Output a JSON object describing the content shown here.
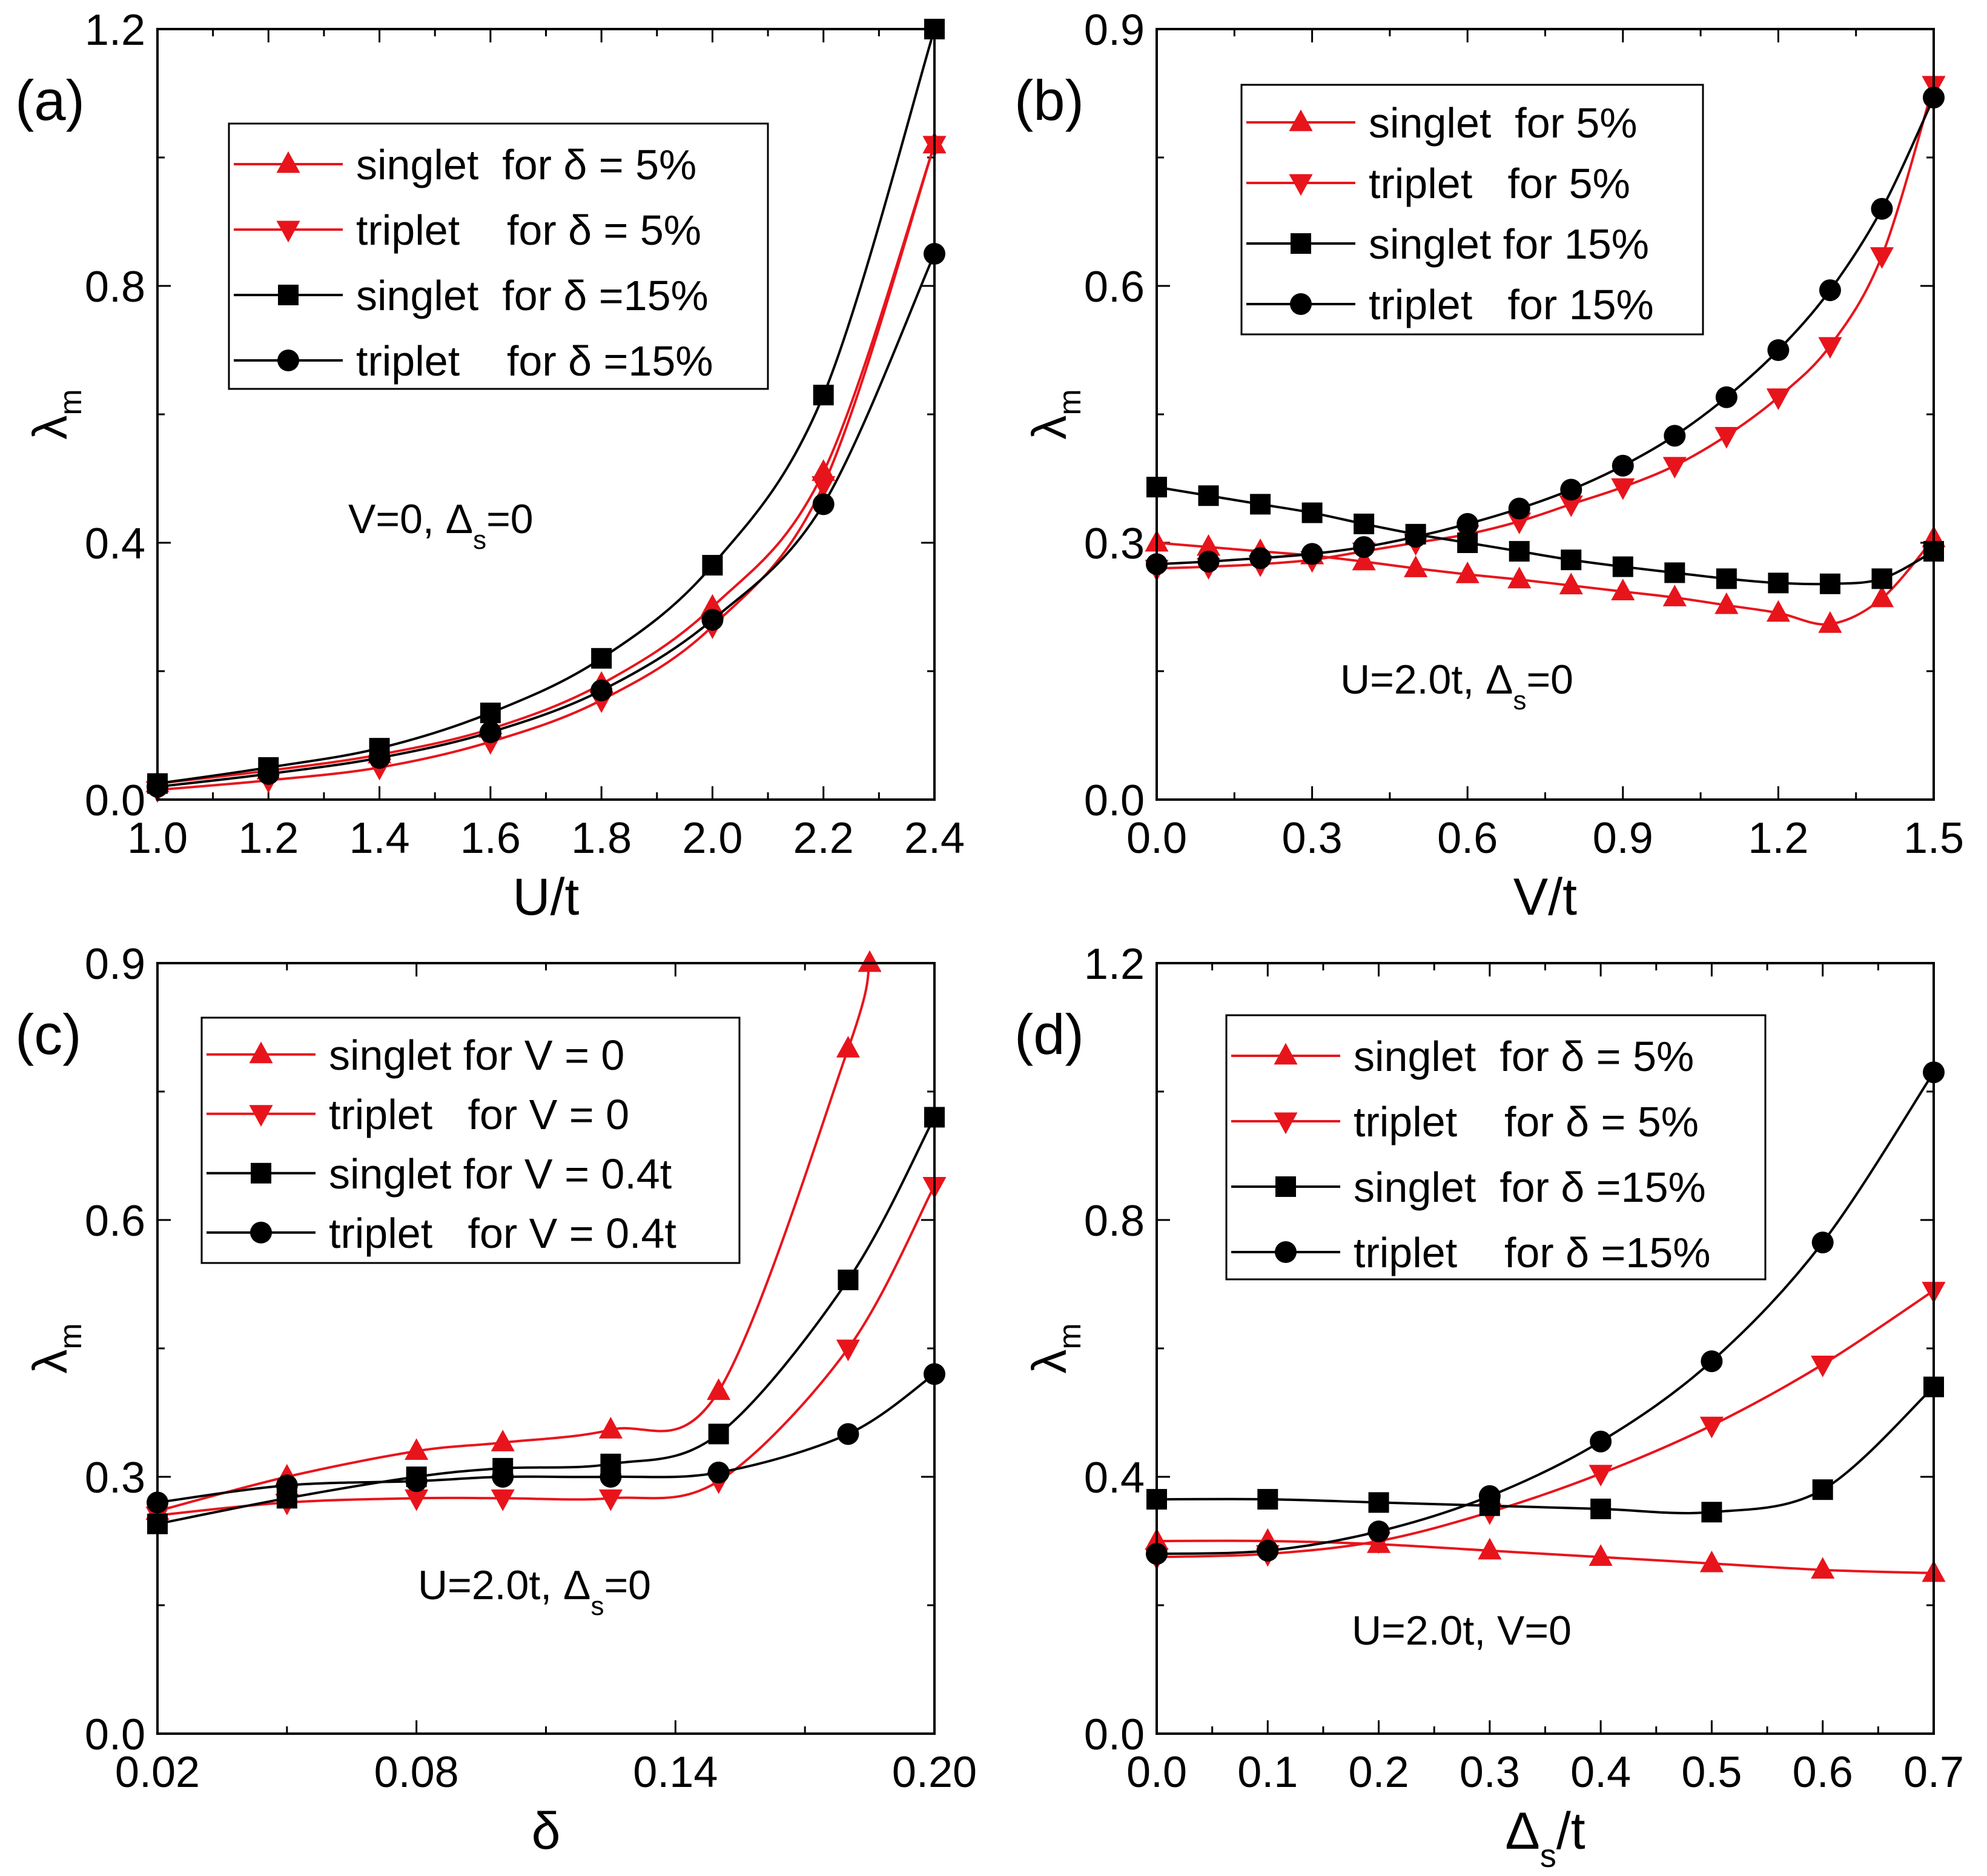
{
  "colors": {
    "red": "#e8141c",
    "black": "#000000"
  },
  "chart_data": [
    {
      "type": "line",
      "panel_label": "(a)",
      "xlabel": "U/t",
      "ylabel": "λm",
      "xlim": [
        1.0,
        2.4
      ],
      "ylim": [
        0.0,
        1.2
      ],
      "xticks": [
        "1.0",
        "1.2",
        "1.4",
        "1.6",
        "1.8",
        "2.0",
        "2.2",
        "2.4"
      ],
      "yticks": [
        "0.0",
        "0.4",
        "0.8",
        "1.2"
      ],
      "annotation": "V=0, Δs=0",
      "legend_position": "top-left",
      "series": [
        {
          "name": "singlet  for δ = 5%",
          "color": "red",
          "marker": "triangle-up",
          "x": [
            1.0,
            1.2,
            1.4,
            1.6,
            1.8,
            2.0,
            2.2,
            2.4
          ],
          "y": [
            0.025,
            0.045,
            0.07,
            0.11,
            0.18,
            0.3,
            0.51,
            1.02
          ]
        },
        {
          "name": "triplet    for δ = 5%",
          "color": "red",
          "marker": "triangle-down",
          "x": [
            1.0,
            1.2,
            1.4,
            1.6,
            1.8,
            2.0,
            2.2,
            2.4
          ],
          "y": [
            0.015,
            0.03,
            0.05,
            0.09,
            0.155,
            0.27,
            0.49,
            1.02
          ]
        },
        {
          "name": "singlet  for δ =15%",
          "color": "black",
          "marker": "square",
          "x": [
            1.0,
            1.2,
            1.4,
            1.6,
            1.8,
            2.0,
            2.2,
            2.4
          ],
          "y": [
            0.025,
            0.05,
            0.08,
            0.135,
            0.22,
            0.365,
            0.63,
            1.2
          ]
        },
        {
          "name": "triplet    for δ =15%",
          "color": "black",
          "marker": "circle",
          "x": [
            1.0,
            1.2,
            1.4,
            1.6,
            1.8,
            2.0,
            2.2,
            2.4
          ],
          "y": [
            0.02,
            0.04,
            0.065,
            0.105,
            0.17,
            0.28,
            0.46,
            0.85
          ]
        }
      ]
    },
    {
      "type": "line",
      "panel_label": "(b)",
      "xlabel": "V/t",
      "ylabel": "λm",
      "xlim": [
        0.0,
        1.5
      ],
      "ylim": [
        0.0,
        0.9
      ],
      "xticks": [
        "0.0",
        "0.3",
        "0.6",
        "0.9",
        "1.2",
        "1.5"
      ],
      "yticks": [
        "0.0",
        "0.3",
        "0.6",
        "0.9"
      ],
      "annotation": "U=2.0t, Δs=0",
      "legend_position": "top-left",
      "series": [
        {
          "name": "singlet  for 5%",
          "color": "red",
          "marker": "triangle-up",
          "x": [
            0.0,
            0.1,
            0.2,
            0.3,
            0.4,
            0.5,
            0.6,
            0.7,
            0.8,
            0.9,
            1.0,
            1.1,
            1.2,
            1.3,
            1.4,
            1.5
          ],
          "y": [
            0.3,
            0.295,
            0.29,
            0.285,
            0.278,
            0.27,
            0.263,
            0.257,
            0.25,
            0.243,
            0.236,
            0.227,
            0.218,
            0.205,
            0.235,
            0.305
          ]
        },
        {
          "name": "triplet   for 5%",
          "color": "red",
          "marker": "triangle-down",
          "x": [
            0.0,
            0.1,
            0.2,
            0.3,
            0.4,
            0.5,
            0.6,
            0.7,
            0.8,
            0.9,
            1.0,
            1.1,
            1.2,
            1.3,
            1.4,
            1.5
          ],
          "y": [
            0.27,
            0.272,
            0.275,
            0.28,
            0.29,
            0.3,
            0.31,
            0.325,
            0.345,
            0.365,
            0.39,
            0.425,
            0.47,
            0.53,
            0.635,
            0.835
          ]
        },
        {
          "name": "singlet for 15%",
          "color": "black",
          "marker": "square",
          "x": [
            0.0,
            0.1,
            0.2,
            0.3,
            0.4,
            0.5,
            0.6,
            0.7,
            0.8,
            0.9,
            1.0,
            1.1,
            1.2,
            1.3,
            1.4,
            1.5
          ],
          "y": [
            0.365,
            0.355,
            0.345,
            0.335,
            0.322,
            0.31,
            0.3,
            0.29,
            0.28,
            0.272,
            0.265,
            0.258,
            0.253,
            0.252,
            0.258,
            0.29
          ]
        },
        {
          "name": "triplet   for 15%",
          "color": "black",
          "marker": "circle",
          "x": [
            0.0,
            0.1,
            0.2,
            0.3,
            0.4,
            0.5,
            0.6,
            0.7,
            0.8,
            0.9,
            1.0,
            1.1,
            1.2,
            1.3,
            1.4,
            1.5
          ],
          "y": [
            0.275,
            0.278,
            0.282,
            0.287,
            0.295,
            0.307,
            0.322,
            0.34,
            0.362,
            0.39,
            0.425,
            0.47,
            0.525,
            0.595,
            0.69,
            0.82
          ]
        }
      ]
    },
    {
      "type": "line",
      "panel_label": "(c)",
      "xlabel": "δ",
      "ylabel": "λm",
      "xlim": [
        0.02,
        0.2
      ],
      "ylim": [
        0.0,
        0.9
      ],
      "xticks": [
        "0.02",
        "0.08",
        "0.14",
        "0.20"
      ],
      "yticks": [
        "0.0",
        "0.3",
        "0.6",
        "0.9"
      ],
      "annotation": "U=2.0t, Δs=0",
      "legend_position": "top-left",
      "series": [
        {
          "name": "singlet for V = 0",
          "color": "red",
          "marker": "triangle-up",
          "x": [
            0.02,
            0.05,
            0.08,
            0.1,
            0.125,
            0.15,
            0.18,
            0.185
          ],
          "y": [
            0.26,
            0.3,
            0.33,
            0.34,
            0.355,
            0.4,
            0.8,
            0.9
          ]
        },
        {
          "name": "triplet   for V = 0",
          "color": "red",
          "marker": "triangle-down",
          "x": [
            0.02,
            0.05,
            0.08,
            0.1,
            0.125,
            0.15,
            0.18,
            0.2
          ],
          "y": [
            0.255,
            0.27,
            0.275,
            0.275,
            0.275,
            0.295,
            0.45,
            0.64
          ]
        },
        {
          "name": "singlet for V = 0.4t",
          "color": "black",
          "marker": "square",
          "x": [
            0.02,
            0.05,
            0.08,
            0.1,
            0.125,
            0.15,
            0.18,
            0.2
          ],
          "y": [
            0.245,
            0.275,
            0.3,
            0.31,
            0.315,
            0.35,
            0.53,
            0.72
          ]
        },
        {
          "name": "triplet   for V = 0.4t",
          "color": "black",
          "marker": "circle",
          "x": [
            0.02,
            0.05,
            0.08,
            0.1,
            0.125,
            0.15,
            0.18,
            0.2
          ],
          "y": [
            0.27,
            0.29,
            0.295,
            0.3,
            0.3,
            0.305,
            0.35,
            0.42
          ]
        }
      ]
    },
    {
      "type": "line",
      "panel_label": "(d)",
      "xlabel": "Δs/t",
      "ylabel": "λm",
      "xlim": [
        0.0,
        0.7
      ],
      "ylim": [
        0.0,
        1.2
      ],
      "xticks": [
        "0.0",
        "0.1",
        "0.2",
        "0.3",
        "0.4",
        "0.5",
        "0.6",
        "0.7"
      ],
      "yticks": [
        "0.0",
        "0.4",
        "0.8",
        "1.2"
      ],
      "annotation": "U=2.0t, V=0",
      "legend_position": "top-left",
      "series": [
        {
          "name": "singlet  for δ = 5%",
          "color": "red",
          "marker": "triangle-up",
          "x": [
            0.0,
            0.1,
            0.2,
            0.3,
            0.4,
            0.5,
            0.6,
            0.7
          ],
          "y": [
            0.3,
            0.3,
            0.295,
            0.285,
            0.275,
            0.265,
            0.255,
            0.25
          ]
        },
        {
          "name": "triplet    for δ = 5%",
          "color": "red",
          "marker": "triangle-down",
          "x": [
            0.0,
            0.1,
            0.2,
            0.3,
            0.4,
            0.5,
            0.6,
            0.7
          ],
          "y": [
            0.275,
            0.28,
            0.3,
            0.345,
            0.405,
            0.48,
            0.575,
            0.69
          ]
        },
        {
          "name": "singlet  for δ =15%",
          "color": "black",
          "marker": "square",
          "x": [
            0.0,
            0.1,
            0.2,
            0.3,
            0.4,
            0.5,
            0.6,
            0.7
          ],
          "y": [
            0.365,
            0.365,
            0.36,
            0.355,
            0.35,
            0.345,
            0.38,
            0.54
          ]
        },
        {
          "name": "triplet    for δ =15%",
          "color": "black",
          "marker": "circle",
          "x": [
            0.0,
            0.1,
            0.2,
            0.3,
            0.4,
            0.5,
            0.6,
            0.7
          ],
          "y": [
            0.28,
            0.285,
            0.315,
            0.37,
            0.455,
            0.58,
            0.765,
            1.03
          ]
        }
      ]
    }
  ]
}
